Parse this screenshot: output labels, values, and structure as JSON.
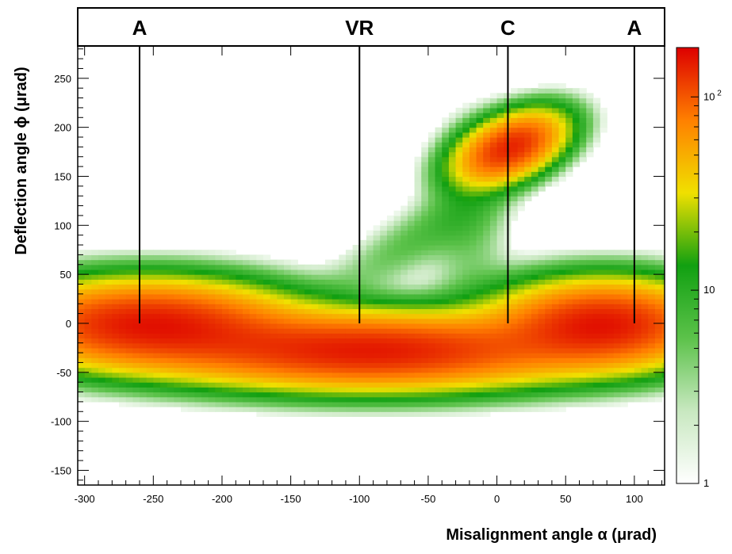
{
  "chart_data": {
    "type": "heatmap",
    "xlabel": "Misalignment angle α (μrad)",
    "ylabel": "Deflection angle ϕ (μrad)",
    "xlim": [
      -305,
      122
    ],
    "ylim": [
      -165,
      283
    ],
    "x_ticks": [
      -300,
      -250,
      -200,
      -150,
      -100,
      -50,
      0,
      50,
      100
    ],
    "y_ticks": [
      -150,
      -100,
      -50,
      0,
      50,
      100,
      150,
      200,
      250
    ],
    "x_tick_labels": [
      "-300",
      "-250",
      "-200",
      "-150",
      "-100",
      "-50",
      "0",
      "50",
      "100"
    ],
    "y_tick_labels": [
      "-150",
      "-100",
      "-50",
      "0",
      "50",
      "100",
      "150",
      "200",
      "250"
    ],
    "colorbar": {
      "scale": "log",
      "range": [
        1,
        180
      ],
      "tick_labels": [
        {
          "value": 1,
          "label": "1"
        },
        {
          "value": 10,
          "label": "10"
        },
        {
          "value": 100,
          "label": "10",
          "exponent": "2"
        }
      ],
      "colors": [
        "#ffffff",
        "#c8e8c0",
        "#5cc24a",
        "#11a011",
        "#f0e000",
        "#ff8000",
        "#dd0000"
      ]
    },
    "region_markers": [
      {
        "label": "A",
        "x": -260
      },
      {
        "label": "VR",
        "x": -100
      },
      {
        "label": "C",
        "x": 8
      },
      {
        "label": "A",
        "x": 100
      }
    ],
    "blobs": [
      {
        "name": "amorphous-left",
        "cx": -255,
        "cy": 0,
        "sx": 60,
        "sy": 25,
        "peak": 150,
        "ang": 0
      },
      {
        "name": "volume-reflection",
        "cx": -90,
        "cy": -28,
        "sx": 85,
        "sy": 22,
        "peak": 150,
        "ang": 0
      },
      {
        "name": "channeling",
        "cx": 10,
        "cy": 180,
        "sx": 26,
        "sy": 16,
        "peak": 140,
        "ang": 40
      },
      {
        "name": "amorphous-right",
        "cx": 78,
        "cy": 0,
        "sx": 45,
        "sy": 25,
        "peak": 150,
        "ang": 0
      },
      {
        "name": "dechanneling-streak",
        "cx": -55,
        "cy": 90,
        "sx": 55,
        "sy": 16,
        "peak": 6,
        "ang": 42
      },
      {
        "name": "dechanneling-band",
        "cx": -20,
        "cy": 110,
        "sx": 18,
        "sy": 60,
        "peak": 5,
        "ang": 0
      }
    ]
  }
}
